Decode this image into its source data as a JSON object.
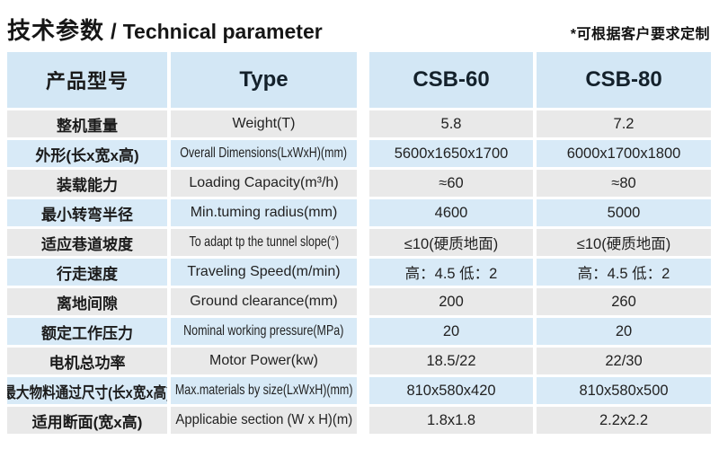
{
  "header": {
    "title_cn": "技术参数",
    "title_sep": "/",
    "title_en": "Technical parameter",
    "note": "*可根据客户要求定制"
  },
  "table": {
    "columns": [
      "产品型号",
      "Type",
      "CSB-60",
      "CSB-80"
    ],
    "rows": [
      {
        "cn": "整机重量",
        "en": "Weight(T)",
        "csb60": "5.8",
        "csb80": "7.2"
      },
      {
        "cn": "外形(长x宽x高)",
        "en": "Overall Dimensions(LxWxH)(mm)",
        "csb60": "5600x1650x1700",
        "csb80": "6000x1700x1800"
      },
      {
        "cn": "装载能力",
        "en": "Loading Capacity(m³/h)",
        "csb60": "≈60",
        "csb80": "≈80"
      },
      {
        "cn": "最小转弯半径",
        "en": "Min.tuming radius(mm)",
        "csb60": "4600",
        "csb80": "5000"
      },
      {
        "cn": "适应巷道坡度",
        "en": "To adapt tp the tunnel slope(°)",
        "csb60": "≤10(硬质地面)",
        "csb80": "≤10(硬质地面)"
      },
      {
        "cn": "行走速度",
        "en": "Traveling Speed(m/min)",
        "csb60": "高：4.5 低：2",
        "csb80": "高：4.5 低：2"
      },
      {
        "cn": "离地间隙",
        "en": "Ground clearance(mm)",
        "csb60": "200",
        "csb80": "260"
      },
      {
        "cn": "额定工作压力",
        "en": "Nominal working pressure(MPa)",
        "csb60": "20",
        "csb80": "20"
      },
      {
        "cn": "电机总功率",
        "en": "Motor Power(kw)",
        "csb60": "18.5/22",
        "csb80": "22/30"
      },
      {
        "cn": "最大物料通过尺寸(长x宽x高)",
        "en": "Max.materials by size(LxWxH)(mm)",
        "csb60": "810x580x420",
        "csb80": "810x580x500"
      },
      {
        "cn": "适用断面(宽x高)",
        "en": "Applicabie section (W x H)(m)",
        "csb60": "1.8x1.8",
        "csb80": "2.2x2.2"
      }
    ]
  },
  "colors": {
    "header_blue": "#d3e7f5",
    "row_blue": "#d8eaf7",
    "row_gray": "#e9e9e9",
    "text": "#1f1f1f"
  }
}
